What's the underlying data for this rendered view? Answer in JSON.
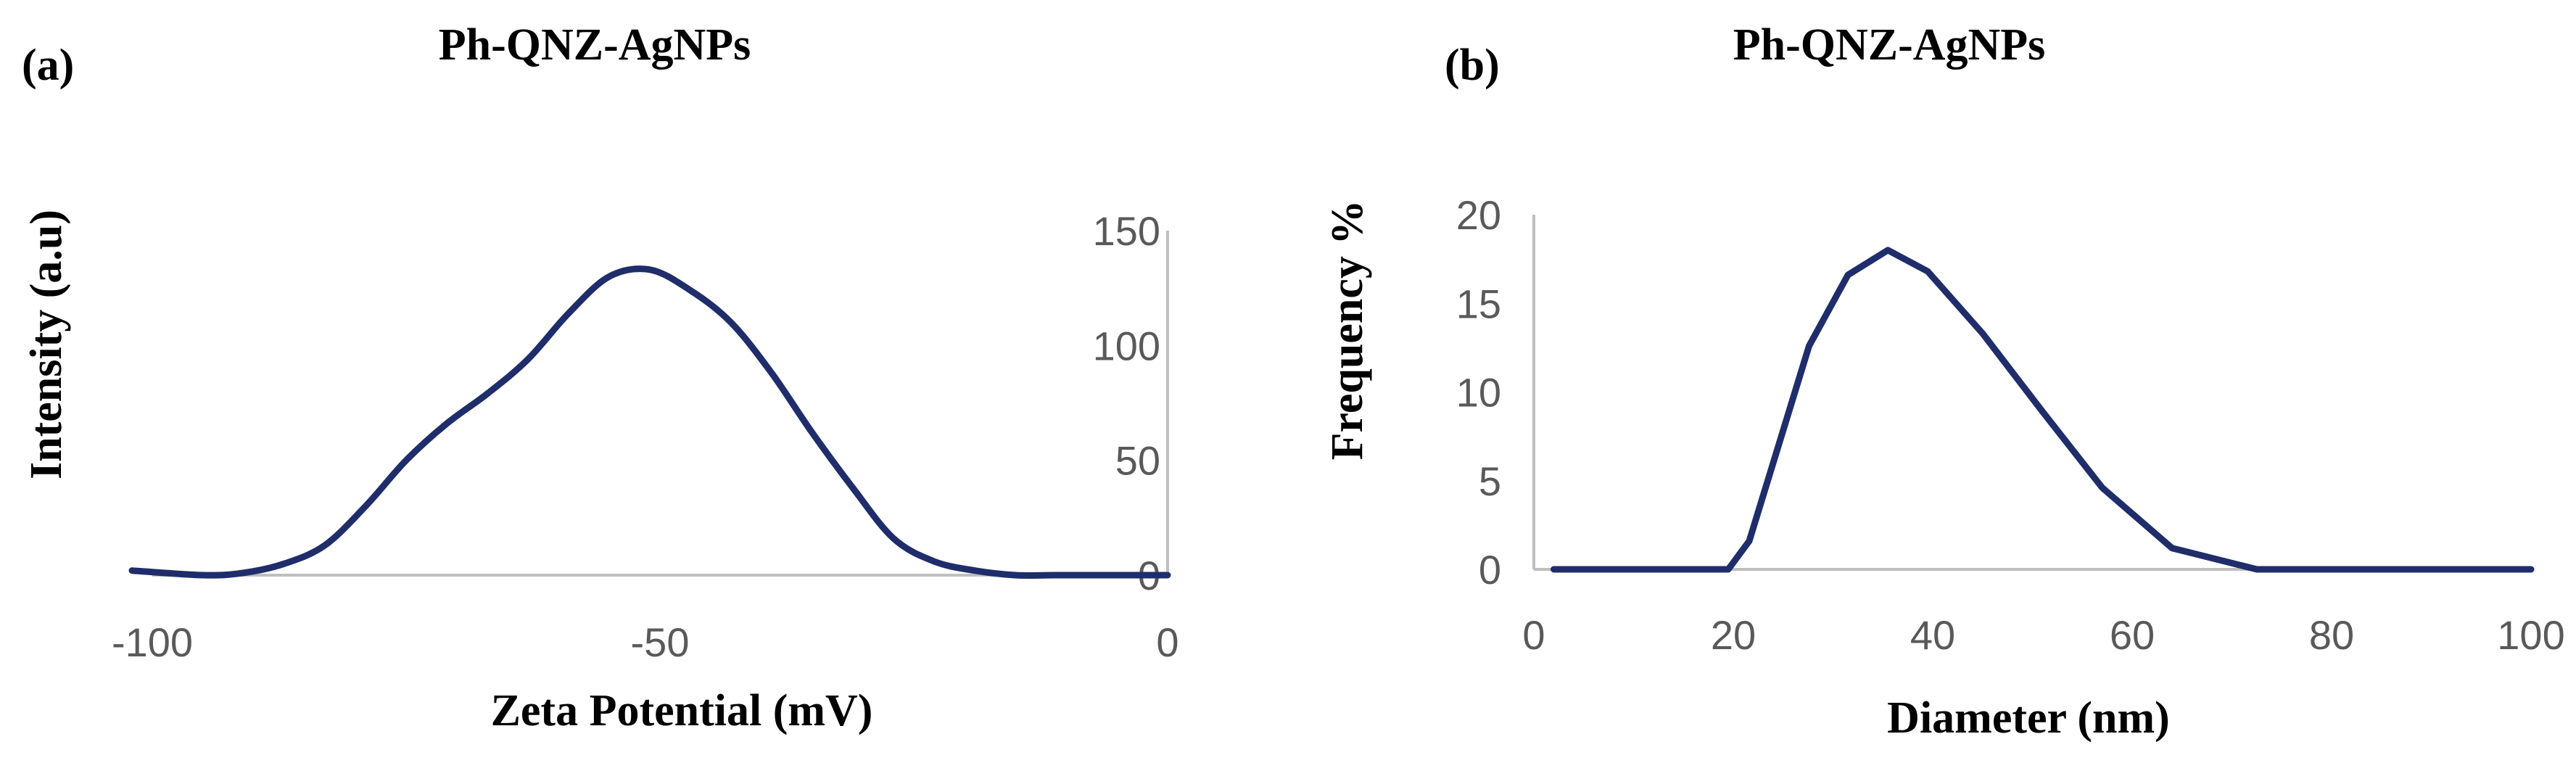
{
  "chart_data": [
    {
      "type": "line",
      "panel_label": "(a)",
      "title": "Ph-QNZ-AgNPs",
      "xlabel": "Zeta Potential (mV)",
      "ylabel": "Intensity (a.u)",
      "xlim": [
        -100,
        0
      ],
      "ylim": [
        0,
        150
      ],
      "x_ticks": [
        "-100",
        "-50",
        "0"
      ],
      "y_ticks": [
        "0",
        "50",
        "100",
        "150"
      ],
      "y_axis_side": "right",
      "grid": false,
      "line_color": "#1f2d6b",
      "x": [
        -102,
        -95,
        -91,
        -87,
        -83,
        -79,
        -75,
        -71,
        -67,
        -63,
        -59,
        -55,
        -51,
        -47,
        -43,
        -39,
        -35,
        -31,
        -27,
        -23,
        -19,
        -15,
        -11,
        -7,
        0
      ],
      "y": [
        2,
        0,
        1,
        5,
        13,
        30,
        50,
        66,
        79,
        94,
        114,
        130,
        133,
        124,
        110,
        88,
        62,
        38,
        16,
        6,
        2,
        0,
        0,
        0,
        0
      ]
    },
    {
      "type": "line",
      "panel_label": "(b)",
      "title": "Ph-QNZ-AgNPs",
      "xlabel": "Diameter (nm)",
      "ylabel": "Frequency %",
      "xlim": [
        0,
        100
      ],
      "ylim": [
        0,
        20
      ],
      "x_ticks": [
        "0",
        "20",
        "40",
        "60",
        "80",
        "100"
      ],
      "y_ticks": [
        "0",
        "5",
        "10",
        "15",
        "20"
      ],
      "grid": false,
      "line_color": "#1f2d6b",
      "x": [
        2,
        19.5,
        21.6,
        27.6,
        31.5,
        35.5,
        39.5,
        45,
        51,
        57,
        64,
        72.5,
        100
      ],
      "y": [
        0,
        0,
        1.6,
        12.6,
        16.6,
        18,
        16.8,
        13.3,
        8.9,
        4.6,
        1.2,
        0,
        0
      ]
    }
  ]
}
